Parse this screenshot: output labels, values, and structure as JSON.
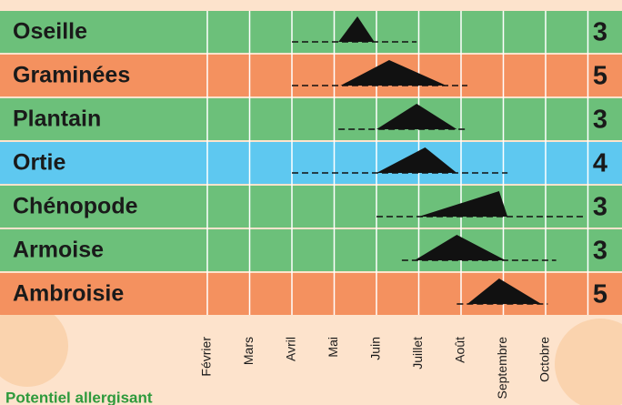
{
  "chart_data": {
    "type": "pollen-calendar",
    "months": [
      "Février",
      "Mars",
      "Avril",
      "Mai",
      "Juin",
      "Juillet",
      "Août",
      "Septembre",
      "Octobre"
    ],
    "rows": [
      {
        "name": "Oseille",
        "potential": 3,
        "color": "#6cc07a",
        "season": [
          2,
          4.95
        ],
        "peak": [
          3.1,
          3.55,
          3.95
        ]
      },
      {
        "name": "Graminées",
        "potential": 5,
        "color": "#f4915f",
        "season": [
          2,
          6.15
        ],
        "peak": [
          3.15,
          4.3,
          5.65
        ]
      },
      {
        "name": "Plantain",
        "potential": 3,
        "color": "#6cc07a",
        "season": [
          3.1,
          6.15
        ],
        "peak": [
          4,
          4.95,
          5.9
        ]
      },
      {
        "name": "Ortie",
        "potential": 4,
        "color": "#5ec8f0",
        "season": [
          2,
          7.1
        ],
        "peak": [
          4,
          5.15,
          5.9
        ]
      },
      {
        "name": "Chénopode",
        "potential": 3,
        "color": "#6cc07a",
        "season": [
          4,
          8.9
        ],
        "peak": [
          5,
          6.9,
          7.1
        ]
      },
      {
        "name": "Armoise",
        "potential": 3,
        "color": "#6cc07a",
        "season": [
          4.6,
          8.25
        ],
        "peak": [
          4.9,
          5.9,
          7.05
        ]
      },
      {
        "name": "Ambroisie",
        "potential": 5,
        "color": "#f4915f",
        "season": [
          5.9,
          8.05
        ],
        "peak": [
          6.15,
          6.9,
          7.9
        ]
      }
    ],
    "footer": "Potentiel allergisant"
  }
}
